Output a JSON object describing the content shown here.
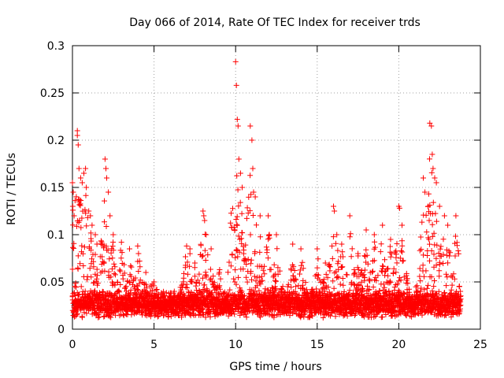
{
  "chart_data": {
    "type": "scatter",
    "title": "Day 066 of 2014, Rate Of TEC Index for receiver trds",
    "xlabel": "GPS time / hours",
    "ylabel": "ROTI / TECUs",
    "xlim": [
      0,
      25
    ],
    "ylim": [
      0,
      0.3
    ],
    "xticks": [
      0,
      5,
      10,
      15,
      20,
      25
    ],
    "yticks": [
      0,
      0.05,
      0.1,
      0.15,
      0.2,
      0.25,
      0.3
    ],
    "xtick_labels": [
      "0",
      "5",
      "10",
      "15",
      "20",
      "25"
    ],
    "ytick_labels": [
      "0",
      "0.05",
      "0.1",
      "0.15",
      "0.2",
      "0.25",
      "0.3"
    ],
    "grid": true,
    "marker": "+",
    "color": "#ff0000",
    "series": [
      {
        "name": "ROTI",
        "points": [
          [
            0.0,
            0.155
          ],
          [
            0.02,
            0.13
          ],
          [
            0.05,
            0.145
          ],
          [
            0.1,
            0.12
          ],
          [
            0.3,
            0.21
          ],
          [
            0.3,
            0.205
          ],
          [
            0.35,
            0.195
          ],
          [
            0.4,
            0.17
          ],
          [
            0.5,
            0.16
          ],
          [
            0.6,
            0.155
          ],
          [
            0.7,
            0.165
          ],
          [
            0.8,
            0.17
          ],
          [
            0.85,
            0.15
          ],
          [
            1.0,
            0.125
          ],
          [
            1.1,
            0.12
          ],
          [
            1.2,
            0.11
          ],
          [
            1.4,
            0.1
          ],
          [
            1.5,
            0.09
          ],
          [
            2.0,
            0.18
          ],
          [
            2.05,
            0.17
          ],
          [
            2.1,
            0.16
          ],
          [
            2.2,
            0.145
          ],
          [
            2.3,
            0.12
          ],
          [
            2.5,
            0.1
          ],
          [
            3.0,
            0.092
          ],
          [
            3.5,
            0.085
          ],
          [
            4.0,
            0.088
          ],
          [
            4.5,
            0.06
          ],
          [
            5.0,
            0.05
          ],
          [
            7.0,
            0.088
          ],
          [
            7.2,
            0.085
          ],
          [
            7.5,
            0.07
          ],
          [
            8.0,
            0.125
          ],
          [
            8.05,
            0.12
          ],
          [
            8.1,
            0.115
          ],
          [
            8.2,
            0.1
          ],
          [
            8.5,
            0.085
          ],
          [
            9.0,
            0.06
          ],
          [
            10.0,
            0.283
          ],
          [
            10.05,
            0.258
          ],
          [
            10.1,
            0.222
          ],
          [
            10.15,
            0.215
          ],
          [
            10.2,
            0.18
          ],
          [
            10.3,
            0.165
          ],
          [
            10.4,
            0.15
          ],
          [
            10.9,
            0.215
          ],
          [
            11.0,
            0.2
          ],
          [
            11.05,
            0.17
          ],
          [
            11.1,
            0.145
          ],
          [
            11.2,
            0.14
          ],
          [
            11.5,
            0.12
          ],
          [
            12.0,
            0.12
          ],
          [
            12.5,
            0.1
          ],
          [
            13.5,
            0.09
          ],
          [
            14.0,
            0.085
          ],
          [
            15.0,
            0.085
          ],
          [
            15.5,
            0.07
          ],
          [
            16.0,
            0.13
          ],
          [
            16.05,
            0.125
          ],
          [
            16.2,
            0.1
          ],
          [
            16.5,
            0.09
          ],
          [
            17.0,
            0.12
          ],
          [
            17.5,
            0.08
          ],
          [
            18.0,
            0.105
          ],
          [
            18.5,
            0.1
          ],
          [
            19.0,
            0.11
          ],
          [
            19.5,
            0.095
          ],
          [
            20.0,
            0.13
          ],
          [
            20.05,
            0.128
          ],
          [
            20.2,
            0.11
          ],
          [
            21.5,
            0.16
          ],
          [
            21.6,
            0.145
          ],
          [
            21.8,
            0.13
          ],
          [
            21.9,
            0.218
          ],
          [
            22.0,
            0.215
          ],
          [
            22.05,
            0.185
          ],
          [
            22.1,
            0.17
          ],
          [
            22.2,
            0.16
          ],
          [
            22.3,
            0.155
          ],
          [
            22.5,
            0.13
          ],
          [
            22.8,
            0.12
          ],
          [
            23.0,
            0.11
          ],
          [
            23.5,
            0.12
          ],
          [
            23.7,
            0.045
          ]
        ]
      }
    ]
  }
}
